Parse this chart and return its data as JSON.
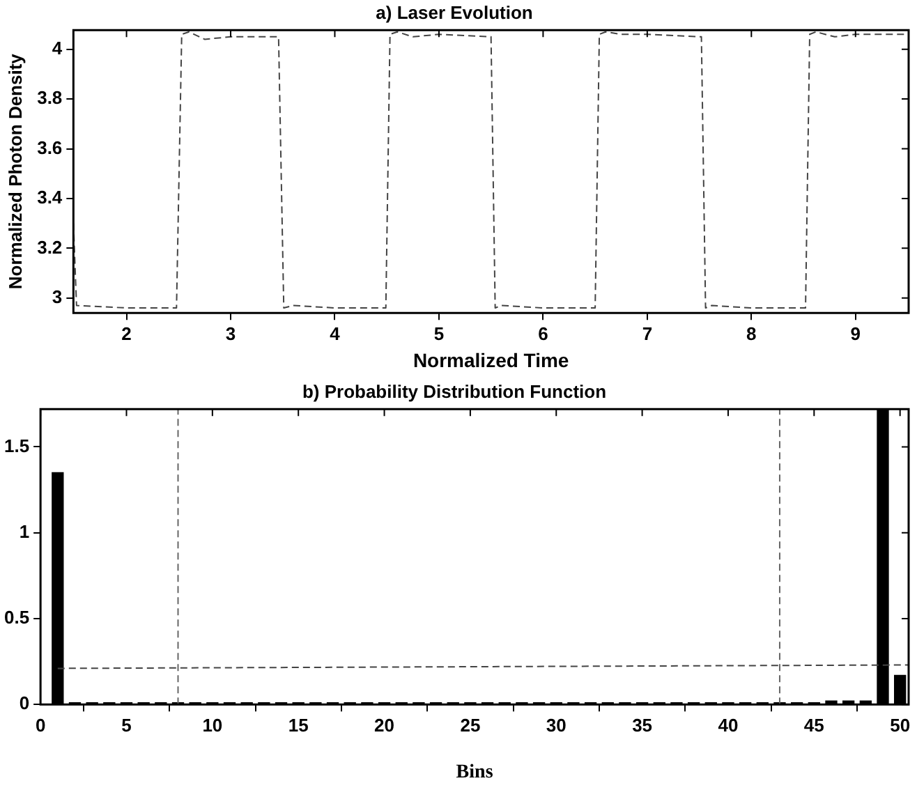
{
  "chart_data": [
    {
      "type": "line",
      "title": "a) Laser Evolution",
      "xlabel": "Normalized Time",
      "ylabel": "Normalized Photon Density",
      "xlim": [
        1.49,
        9.51
      ],
      "ylim": [
        2.94,
        4.077
      ],
      "xticks": [
        2,
        3,
        4,
        5,
        6,
        7,
        8,
        9
      ],
      "yticks": [
        3,
        3.2,
        3.4,
        3.6,
        3.8,
        4
      ],
      "grid": false,
      "legend": false,
      "line_style": "dashed",
      "marker": "none",
      "series": [
        {
          "color": "#444444",
          "x": [
            1.49,
            1.52,
            2.0,
            2.48,
            2.53,
            2.6,
            2.75,
            3.0,
            3.46,
            3.51,
            3.6,
            4.0,
            4.49,
            4.53,
            4.6,
            4.75,
            5.0,
            5.5,
            5.54,
            5.6,
            6.0,
            6.5,
            6.54,
            6.6,
            6.75,
            7.0,
            7.52,
            7.56,
            7.62,
            8.0,
            8.52,
            8.56,
            8.62,
            8.8,
            9.0,
            9.51
          ],
          "values": [
            3.3,
            2.97,
            2.96,
            2.96,
            4.06,
            4.07,
            4.04,
            4.05,
            4.05,
            2.96,
            2.97,
            2.96,
            2.96,
            4.06,
            4.07,
            4.05,
            4.06,
            4.05,
            2.96,
            2.97,
            2.96,
            2.96,
            4.06,
            4.07,
            4.06,
            4.06,
            4.05,
            2.96,
            2.97,
            2.96,
            2.96,
            4.06,
            4.07,
            4.05,
            4.06,
            4.06
          ]
        }
      ]
    },
    {
      "type": "bar",
      "title": "b) Probability Distribution Function",
      "xlabel": "Bins",
      "xlim": [
        0,
        50.5
      ],
      "ylim": [
        0,
        1.72
      ],
      "xticks": [
        0,
        5,
        10,
        15,
        20,
        25,
        30,
        35,
        40,
        45,
        50
      ],
      "yticks": [
        0,
        0.5,
        1,
        1.5
      ],
      "grid": false,
      "legend": false,
      "x": [
        1,
        2,
        3,
        4,
        5,
        6,
        7,
        8,
        9,
        10,
        11,
        12,
        13,
        14,
        15,
        16,
        17,
        18,
        19,
        20,
        21,
        22,
        23,
        24,
        25,
        26,
        27,
        28,
        29,
        30,
        31,
        32,
        33,
        34,
        35,
        36,
        37,
        38,
        39,
        40,
        41,
        42,
        43,
        44,
        45,
        46,
        47,
        48,
        49,
        50
      ],
      "series": [
        {
          "type": "bar",
          "color": "#000000",
          "values": [
            1.35,
            0.01,
            0.01,
            0.01,
            0.01,
            0.01,
            0.01,
            0.01,
            0.01,
            0.01,
            0.01,
            0.01,
            0.01,
            0.01,
            0.01,
            0.01,
            0.01,
            0.01,
            0.01,
            0.01,
            0.01,
            0.01,
            0.01,
            0.01,
            0.01,
            0.01,
            0.01,
            0.01,
            0.01,
            0.01,
            0.01,
            0.01,
            0.01,
            0.01,
            0.01,
            0.01,
            0.01,
            0.01,
            0.01,
            0.01,
            0.01,
            0.01,
            0.01,
            0.01,
            0.01,
            0.02,
            0.02,
            0.02,
            1.72,
            0.17
          ]
        },
        {
          "type": "line",
          "color": "#444444",
          "line_style": "dashed",
          "x": [
            1,
            50.5
          ],
          "values": [
            0.21,
            0.23
          ]
        }
      ],
      "ref_lines": [
        {
          "axis": "x",
          "value": 8,
          "color": "#666666",
          "line_style": "dashed"
        },
        {
          "axis": "x",
          "value": 43,
          "color": "#666666",
          "line_style": "dashed"
        }
      ]
    }
  ]
}
